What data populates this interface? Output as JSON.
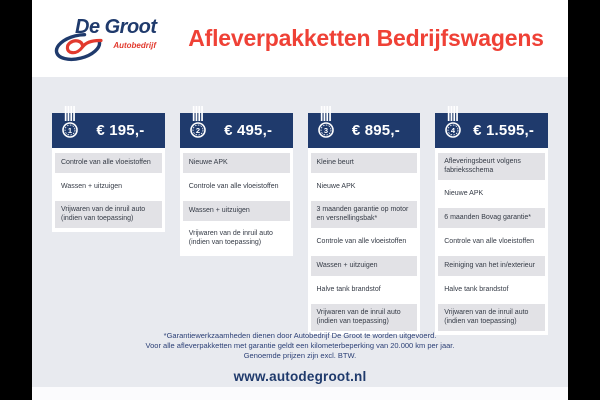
{
  "header": {
    "title": "Afleverpakketten Bedrijfswagens"
  },
  "brand": {
    "name": "De Groot",
    "subtitle": "Autobedrijf"
  },
  "packages": [
    {
      "rank": "1",
      "price": "€ 195,-",
      "items": [
        "Controle van alle vloeistoffen",
        "Wassen + uitzuigen",
        "Vrijwaren van de inruil auto (indien van toepassing)"
      ]
    },
    {
      "rank": "2",
      "price": "€ 495,-",
      "items": [
        "Nieuwe APK",
        "Controle van alle vloeistoffen",
        "Wassen + uitzuigen",
        "Vrijwaren van de inruil auto (indien van toepassing)"
      ]
    },
    {
      "rank": "3",
      "price": "€ 895,-",
      "items": [
        "Kleine beurt",
        "Nieuwe APK",
        "3 maanden garantie op motor en versnellingsbak*",
        "Controle van alle vloeistoffen",
        "Wassen + uitzuigen",
        "Halve tank brandstof",
        "Vrijwaren van de inruil auto (indien van toepassing)"
      ]
    },
    {
      "rank": "4",
      "price": "€ 1.595,-",
      "items": [
        "Afleveringsbeurt volgens fabrieksschema",
        "Nieuwe APK",
        "6 maanden Bovag garantie*",
        "Controle van alle vloeistoffen",
        "Reiniging van het in/exterieur",
        "Halve tank brandstof",
        "Vrijwaren van de inruil auto (indien van toepassing)"
      ]
    }
  ],
  "footer": {
    "disclaimer": [
      "*Garantiewerkzaamheden dienen door Autobedrijf De Groot te worden uitgevoerd.",
      "Voor alle afleverpakketten met garantie geldt een kilometerbeperking van 20.000 km per jaar.",
      "Genoemde prijzen zijn excl. BTW."
    ],
    "website": "www.autodegroot.nl"
  },
  "colors": {
    "navy": "#1f3a6c",
    "red": "#ef4136",
    "page_bg": "#e8eaef",
    "row_gray": "#e2e2e6",
    "frame": "#000000"
  }
}
